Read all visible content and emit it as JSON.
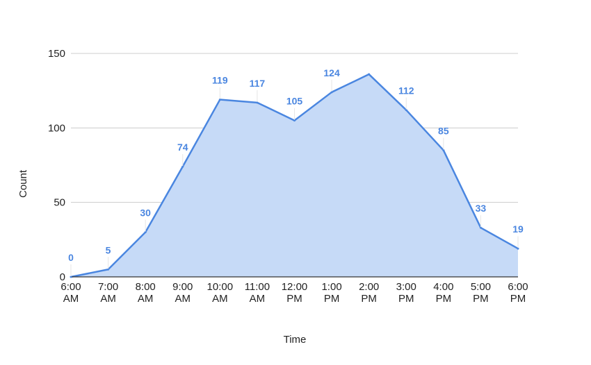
{
  "chart_data": {
    "type": "area",
    "title": "",
    "xlabel": "Time",
    "ylabel": "Count",
    "categories": [
      [
        "6:00",
        "AM"
      ],
      [
        "7:00",
        "AM"
      ],
      [
        "8:00",
        "AM"
      ],
      [
        "9:00",
        "AM"
      ],
      [
        "10:00",
        "AM"
      ],
      [
        "11:00",
        "AM"
      ],
      [
        "12:00",
        "PM"
      ],
      [
        "1:00",
        "PM"
      ],
      [
        "2:00",
        "PM"
      ],
      [
        "3:00",
        "PM"
      ],
      [
        "4:00",
        "PM"
      ],
      [
        "5:00",
        "PM"
      ],
      [
        "6:00",
        "PM"
      ]
    ],
    "values": [
      0,
      5,
      30,
      74,
      119,
      117,
      105,
      124,
      136,
      112,
      85,
      33,
      19
    ],
    "data_labels": [
      "0",
      "5",
      "30",
      "74",
      "119",
      "117",
      "105",
      "124",
      "",
      "112",
      "85",
      "33",
      "19"
    ],
    "ylim": [
      0,
      150
    ],
    "yticks": [
      "0",
      "50",
      "100",
      "150"
    ],
    "grid": true,
    "legend": "none",
    "colors": {
      "line": "#4a86e0",
      "fill": "#c6daf7",
      "label": "#4a86e0",
      "grid": "#cccccc",
      "axis": "#333333"
    }
  }
}
